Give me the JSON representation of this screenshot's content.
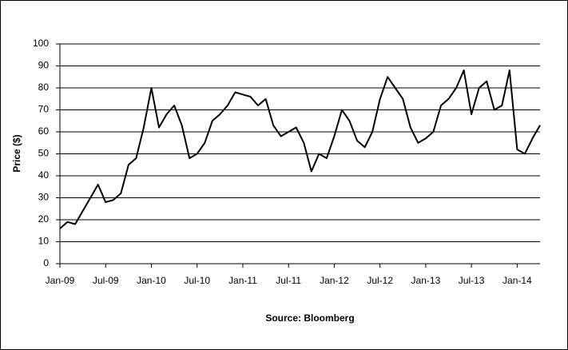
{
  "chart_data": {
    "type": "line",
    "y_label": "Price ($)",
    "source": "Source:  Bloomberg",
    "x": [
      "2009-01",
      "2009-02",
      "2009-03",
      "2009-04",
      "2009-05",
      "2009-06",
      "2009-07",
      "2009-08",
      "2009-09",
      "2009-10",
      "2009-11",
      "2009-12",
      "2010-01",
      "2010-02",
      "2010-03",
      "2010-04",
      "2010-05",
      "2010-06",
      "2010-07",
      "2010-08",
      "2010-09",
      "2010-10",
      "2010-11",
      "2010-12",
      "2011-01",
      "2011-02",
      "2011-03",
      "2011-04",
      "2011-05",
      "2011-06",
      "2011-07",
      "2011-08",
      "2011-09",
      "2011-10",
      "2011-11",
      "2011-12",
      "2012-01",
      "2012-02",
      "2012-03",
      "2012-04",
      "2012-05",
      "2012-06",
      "2012-07",
      "2012-08",
      "2012-09",
      "2012-10",
      "2012-11",
      "2012-12",
      "2013-01",
      "2013-02",
      "2013-03",
      "2013-04",
      "2013-05",
      "2013-06",
      "2013-07",
      "2013-08",
      "2013-09",
      "2013-10",
      "2013-11",
      "2013-12",
      "2014-01",
      "2014-02",
      "2014-03",
      "2014-04"
    ],
    "series": [
      {
        "name": "Price",
        "color": "#000000",
        "values": [
          16,
          19,
          18,
          24,
          30,
          36,
          28,
          29,
          32,
          45,
          48,
          62,
          80,
          62,
          68,
          72,
          63,
          48,
          50,
          55,
          65,
          68,
          72,
          78,
          77,
          76,
          72,
          75,
          63,
          58,
          60,
          62,
          55,
          42,
          50,
          48,
          58,
          70,
          65,
          56,
          53,
          60,
          75,
          85,
          80,
          75,
          62,
          55,
          57,
          60,
          72,
          75,
          80,
          88,
          68,
          80,
          83,
          70,
          72,
          88,
          52,
          50,
          57,
          63
        ]
      }
    ],
    "xlim": [
      "2009-01",
      "2014-04"
    ],
    "xticks": [
      {
        "value": "2009-01",
        "label": "Jan-09"
      },
      {
        "value": "2009-07",
        "label": "Jul-09"
      },
      {
        "value": "2010-01",
        "label": "Jan-10"
      },
      {
        "value": "2010-07",
        "label": "Jul-10"
      },
      {
        "value": "2011-01",
        "label": "Jan-11"
      },
      {
        "value": "2011-07",
        "label": "Jul-11"
      },
      {
        "value": "2012-01",
        "label": "Jan-12"
      },
      {
        "value": "2012-07",
        "label": "Jul-12"
      },
      {
        "value": "2013-01",
        "label": "Jan-13"
      },
      {
        "value": "2013-07",
        "label": "Jul-13"
      },
      {
        "value": "2014-01",
        "label": "Jan-14"
      }
    ],
    "ylim": [
      0,
      100
    ],
    "yticks": [
      0,
      10,
      20,
      30,
      40,
      50,
      60,
      70,
      80,
      90,
      100
    ],
    "grid": true
  }
}
